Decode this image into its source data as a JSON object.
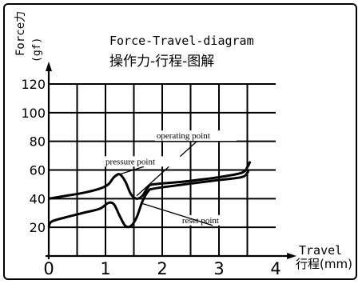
{
  "chart_data": {
    "type": "line",
    "title": "Force-Travel-diagram",
    "subtitle": "操作力-行程-图解",
    "ylabel_top": "Force力",
    "ylabel_unit": "(gf)",
    "xlabel_top": "Travel",
    "xlabel_unit": "行程(mm)",
    "xlim": [
      0,
      4
    ],
    "ylim": [
      0,
      120
    ],
    "x_ticks": [
      0,
      1,
      2,
      3,
      4
    ],
    "y_ticks": [
      20,
      40,
      60,
      80,
      100,
      120
    ],
    "x_minor_step": 0.5,
    "y_minor_step": 20,
    "grid": true,
    "series": [
      {
        "points": [
          [
            0,
            40
          ],
          [
            0.3,
            42
          ],
          [
            0.6,
            44
          ],
          [
            0.9,
            47
          ],
          [
            1.05,
            50
          ],
          [
            1.15,
            55
          ],
          [
            1.25,
            57
          ],
          [
            1.35,
            52
          ],
          [
            1.45,
            43
          ],
          [
            1.55,
            40
          ],
          [
            1.65,
            42
          ],
          [
            1.75,
            48
          ],
          [
            1.85,
            50
          ],
          [
            2.4,
            52
          ],
          [
            3.0,
            55
          ],
          [
            3.4,
            58
          ],
          [
            3.5,
            62
          ],
          [
            3.55,
            66
          ]
        ]
      },
      {
        "points": [
          [
            0,
            20
          ],
          [
            0.05,
            24
          ],
          [
            0.3,
            27
          ],
          [
            0.6,
            30
          ],
          [
            0.9,
            33
          ],
          [
            1.05,
            37
          ],
          [
            1.15,
            36
          ],
          [
            1.25,
            28
          ],
          [
            1.35,
            21
          ],
          [
            1.45,
            21
          ],
          [
            1.55,
            27
          ],
          [
            1.65,
            38
          ],
          [
            1.75,
            45
          ],
          [
            1.85,
            47
          ],
          [
            2.4,
            50
          ],
          [
            3.0,
            53
          ],
          [
            3.4,
            55
          ],
          [
            3.5,
            58
          ],
          [
            3.52,
            60
          ]
        ]
      }
    ],
    "annotations": [
      {
        "label": "operating point",
        "x": 1.9,
        "y": 82,
        "tx": 1.55,
        "ty": 42
      },
      {
        "label": "pressure point",
        "x": 1.0,
        "y": 64,
        "tx": 1.25,
        "ty": 57
      },
      {
        "label": "reset point",
        "x": 2.35,
        "y": 23,
        "tx": 1.62,
        "ty": 37
      }
    ]
  }
}
